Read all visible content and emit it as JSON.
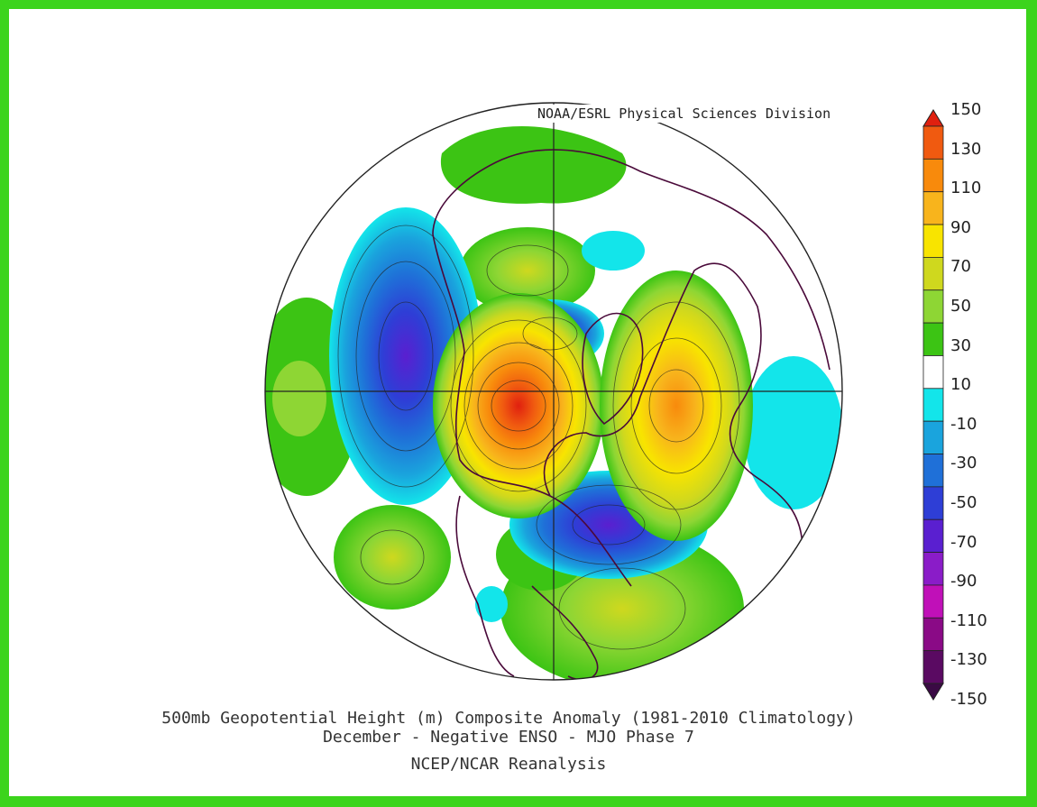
{
  "credit": "NOAA/ESRL Physical Sciences Division",
  "caption": {
    "line1": "500mb Geopotential Height (m) Composite Anomaly (1981-2010 Climatology)",
    "line2": "December - Negative ENSO - MJO Phase 7",
    "line3": "NCEP/NCAR Reanalysis"
  },
  "colorbar": {
    "labels": [
      "150",
      "130",
      "110",
      "90",
      "70",
      "50",
      "30",
      "10",
      "-10",
      "-30",
      "-50",
      "-70",
      "-90",
      "-110",
      "-130",
      "-150"
    ],
    "colors": [
      "#e0200f",
      "#f05a10",
      "#f88a0c",
      "#f8b41c",
      "#f8e400",
      "#cfd81e",
      "#8ed634",
      "#3cc414",
      "#ffffff",
      "#13e5ea",
      "#1aa4dd",
      "#1f70d8",
      "#2e3ed6",
      "#5a1fd0",
      "#8a1cc8",
      "#c010b8",
      "#8a0a86",
      "#5a0a62",
      "#3a0a44"
    ]
  },
  "anomalies": [
    {
      "name": "anomaly-negative-gulf-of-alaska",
      "value": -90
    },
    {
      "name": "anomaly-positive-north-america",
      "value": 150
    },
    {
      "name": "anomaly-positive-north-atlantic",
      "value": 110
    },
    {
      "name": "anomaly-negative-central-pacific",
      "value": -90
    },
    {
      "name": "anomaly-negative-hudson-bay",
      "value": -70
    },
    {
      "name": "anomaly-positive-central-atlantic",
      "value": 50
    }
  ]
}
